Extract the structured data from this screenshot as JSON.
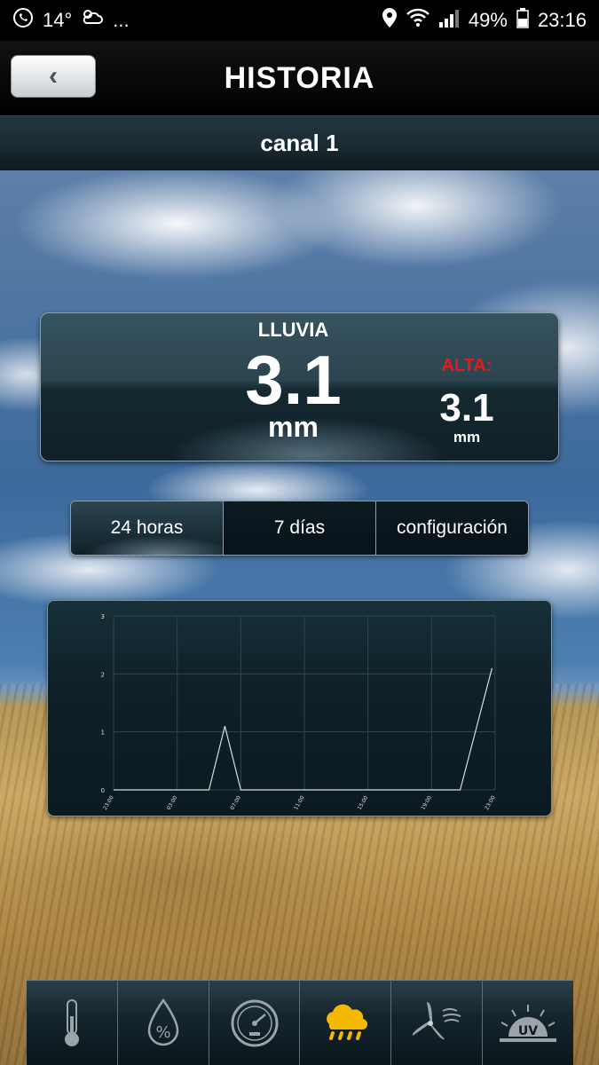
{
  "status_bar": {
    "temp": "14°",
    "dots": "...",
    "battery": "49%",
    "time": "23:16"
  },
  "header": {
    "back_glyph": "‹",
    "title": "HISTORIA"
  },
  "channel": {
    "title": "canal 1"
  },
  "rain_card": {
    "label": "LLUVIA",
    "value": "3.1",
    "unit": "mm",
    "high_label": "ALTA:",
    "high_value": "3.1",
    "high_unit": "mm"
  },
  "tabs": [
    {
      "label": "24 horas",
      "active": true
    },
    {
      "label": "7 días",
      "active": false
    },
    {
      "label": "configuración",
      "active": false
    }
  ],
  "chart_data": {
    "type": "line",
    "x": [
      "23:00",
      "03:00",
      "07:00",
      "11:00",
      "15:00",
      "19:00",
      "23:00"
    ],
    "series": [
      {
        "points": [
          [
            0,
            0
          ],
          [
            1.5,
            0
          ],
          [
            1.75,
            1.1
          ],
          [
            2,
            0
          ],
          [
            5.45,
            0
          ],
          [
            5.95,
            2.1
          ]
        ]
      }
    ],
    "yticks": [
      "0",
      "1",
      "2",
      "3"
    ],
    "ylim": [
      0,
      3
    ],
    "grid": true,
    "line_color": "#d9dde0"
  },
  "bottom_nav": [
    {
      "icon": "thermometer-icon"
    },
    {
      "icon": "humidity-drop-icon"
    },
    {
      "icon": "barometer-gauge-icon"
    },
    {
      "icon": "rain-cloud-icon",
      "active": true,
      "color": "#f5b800"
    },
    {
      "icon": "wind-turbine-icon"
    },
    {
      "icon": "uv-sun-icon"
    }
  ]
}
